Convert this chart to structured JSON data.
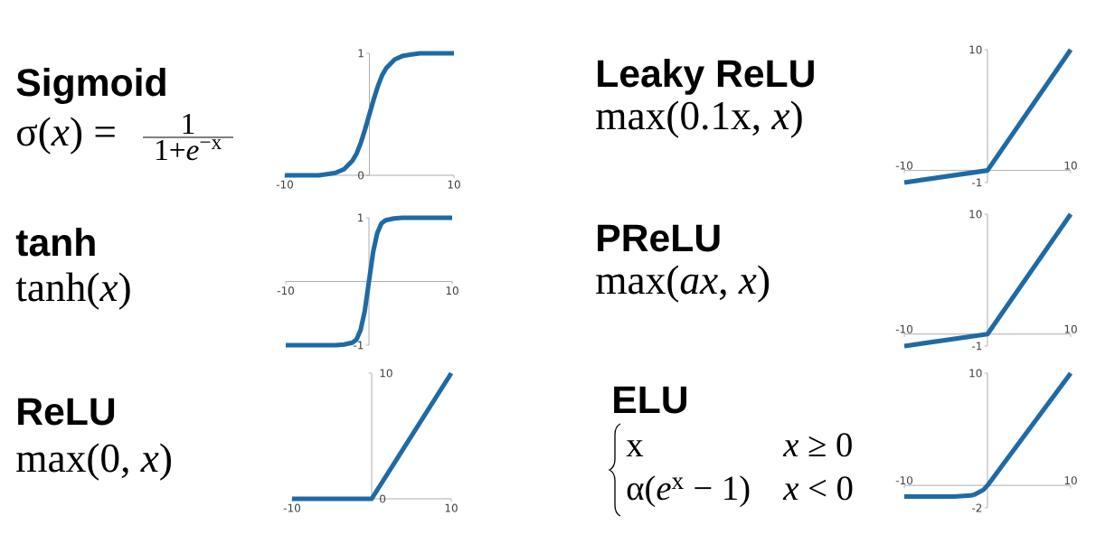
{
  "chart_data": [
    {
      "type": "line",
      "title": "Sigmoid",
      "subtitle": "σ(*x*) =",
      "annotations": [
        "1",
        "1+*e*$^{−x}$"
      ],
      "x": [
        -10,
        -8,
        -6,
        -5,
        -4,
        -3,
        -2,
        -1.5,
        -1,
        -0.5,
        0,
        0.5,
        1,
        1.5,
        2,
        3,
        4,
        5,
        6,
        8,
        10
      ],
      "series": [
        {
          "color": "#1f6aa5",
          "values": [
            0,
            0,
            0,
            0.01,
            0.02,
            0.05,
            0.12,
            0.18,
            0.27,
            0.38,
            0.5,
            0.62,
            0.73,
            0.82,
            0.88,
            0.95,
            0.98,
            0.99,
            1,
            1,
            1
          ]
        }
      ],
      "xlim": [
        -10,
        10
      ],
      "ylim": [
        0,
        1
      ],
      "xticks": [
        -10,
        10
      ],
      "yticks": [
        0,
        1
      ]
    },
    {
      "type": "line",
      "title": "Leaky ReLU",
      "subtitle": "max(0.1x, *x*)",
      "x": [
        -10,
        0,
        10
      ],
      "series": [
        {
          "color": "#1f6aa5",
          "values": [
            -1,
            0,
            10
          ]
        }
      ],
      "xlim": [
        -10,
        10
      ],
      "ylim": [
        -1,
        10
      ],
      "xticks": [
        -10,
        10
      ],
      "yticks": [
        -1,
        10
      ]
    },
    {
      "type": "line",
      "title": "tanh",
      "subtitle": "tanh(*x*)",
      "x": [
        -10,
        -4,
        -3,
        -2,
        -1.5,
        -1,
        -0.5,
        0,
        0.5,
        1,
        1.5,
        2,
        3,
        4,
        10
      ],
      "series": [
        {
          "color": "#1f6aa5",
          "values": [
            -1,
            -1,
            -0.99,
            -0.96,
            -0.91,
            -0.76,
            -0.46,
            0,
            0.46,
            0.76,
            0.91,
            0.96,
            0.99,
            1,
            1
          ]
        }
      ],
      "xlim": [
        -10,
        10
      ],
      "ylim": [
        -1,
        1
      ],
      "xticks": [
        -10,
        10
      ],
      "yticks": [
        -1,
        1
      ]
    },
    {
      "type": "line",
      "title": "PReLU",
      "subtitle": "max(*ax*, *x*)",
      "x": [
        -10,
        0,
        10
      ],
      "series": [
        {
          "color": "#1f6aa5",
          "values": [
            -1,
            0,
            10
          ]
        }
      ],
      "xlim": [
        -10,
        10
      ],
      "ylim": [
        -1,
        10
      ],
      "xticks": [
        -10,
        10
      ],
      "yticks": [
        -1,
        10
      ]
    },
    {
      "type": "line",
      "title": "ReLU",
      "subtitle": "max(0, *x*)",
      "x": [
        -10,
        0,
        10
      ],
      "series": [
        {
          "color": "#1f6aa5",
          "values": [
            0,
            0,
            10
          ]
        }
      ],
      "xlim": [
        -10,
        10
      ],
      "ylim": [
        0,
        10
      ],
      "xticks": [
        -10,
        10
      ],
      "yticks": [
        0,
        10
      ]
    },
    {
      "type": "line",
      "title": "ELU",
      "annotations": [
        "x",
        "*x* ≥ 0",
        "α(*e*$^{x}$ − 1)",
        "*x* < 0"
      ],
      "x": [
        -10,
        -4,
        -2,
        -1.5,
        -1,
        -0.5,
        0,
        10
      ],
      "series": [
        {
          "color": "#1f6aa5",
          "values": [
            -1,
            -1,
            -0.9,
            -0.8,
            -0.6,
            -0.4,
            0,
            10
          ]
        }
      ],
      "xlim": [
        -10,
        10
      ],
      "ylim": [
        -2,
        10
      ],
      "xticks": [
        -10,
        10
      ],
      "yticks": [
        -2,
        10
      ]
    }
  ]
}
